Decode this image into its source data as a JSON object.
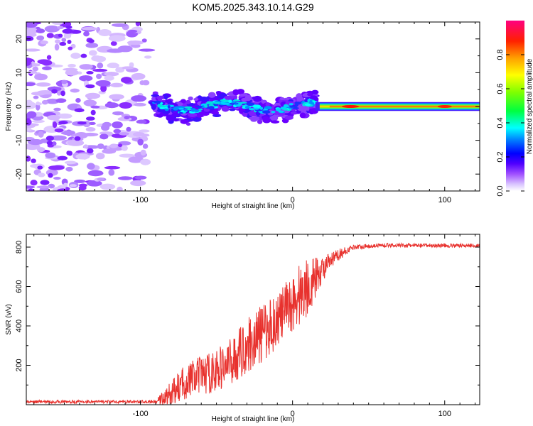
{
  "title": "KOM5.2025.343.10.14.G29",
  "chart_data": [
    {
      "type": "heatmap",
      "xlabel": "Height of straight line (km)",
      "ylabel": "Frequency (Hz)",
      "xlim": [
        -175,
        123
      ],
      "ylim": [
        -25,
        25
      ],
      "x_ticks": [
        -100,
        0,
        100
      ],
      "x_tick_labels": [
        "-100",
        "0",
        "100"
      ],
      "y_ticks": [
        -20,
        -10,
        0,
        10,
        20
      ],
      "y_tick_labels": [
        "-20",
        "-10",
        "0",
        "10",
        "20"
      ],
      "colorbar": {
        "label": "Normalized spectral amplitude",
        "range": [
          0,
          1
        ],
        "ticks": [
          0.0,
          0.2,
          0.4,
          0.6,
          0.8
        ],
        "tick_labels": [
          "0.0",
          "0.2",
          "0.4",
          "0.6",
          "0.8"
        ],
        "colors": [
          "#ffffff",
          "#c49cff",
          "#7a00ff",
          "#1a00ff",
          "#0090ff",
          "#00ffff",
          "#00ff40",
          "#80ff00",
          "#ffff00",
          "#ff8000",
          "#ff0000",
          "#ff0080"
        ]
      },
      "features": [
        {
          "name": "scattered noise",
          "x_range": [
            -175,
            -95
          ],
          "amplitude": 0.1
        },
        {
          "name": "central burst",
          "x_range": [
            -92,
            15
          ],
          "freq_center": 0,
          "freq_halfwidth": 3,
          "amplitude": 0.25
        },
        {
          "name": "steady carrier",
          "x_range": [
            15,
            123
          ],
          "freq_center": 0,
          "freq_halfwidth": 1,
          "amplitude": 0.9
        }
      ]
    },
    {
      "type": "line",
      "xlabel": "Height of straight line (km)",
      "ylabel": "SNR (v/v)",
      "xlim": [
        -175,
        123
      ],
      "ylim": [
        0,
        865
      ],
      "x_ticks": [
        -100,
        0,
        100
      ],
      "x_tick_labels": [
        "-100",
        "0",
        "100"
      ],
      "y_ticks": [
        200,
        400,
        600,
        800
      ],
      "y_tick_labels": [
        "200",
        "400",
        "600",
        "800"
      ],
      "series": [
        {
          "name": "SNR",
          "color": "#e8322e",
          "x": [
            -175,
            -90,
            -82,
            -70,
            -60,
            -50,
            -40,
            -30,
            -20,
            -10,
            0,
            5,
            10,
            20,
            30,
            40,
            60,
            80,
            100,
            123
          ],
          "y": [
            15,
            15,
            40,
            120,
            150,
            170,
            220,
            300,
            360,
            430,
            520,
            560,
            600,
            690,
            760,
            800,
            810,
            808,
            808,
            808
          ],
          "noise": [
            8,
            8,
            60,
            90,
            100,
            110,
            120,
            140,
            150,
            140,
            150,
            170,
            150,
            60,
            30,
            12,
            10,
            10,
            10,
            10
          ]
        }
      ]
    }
  ]
}
